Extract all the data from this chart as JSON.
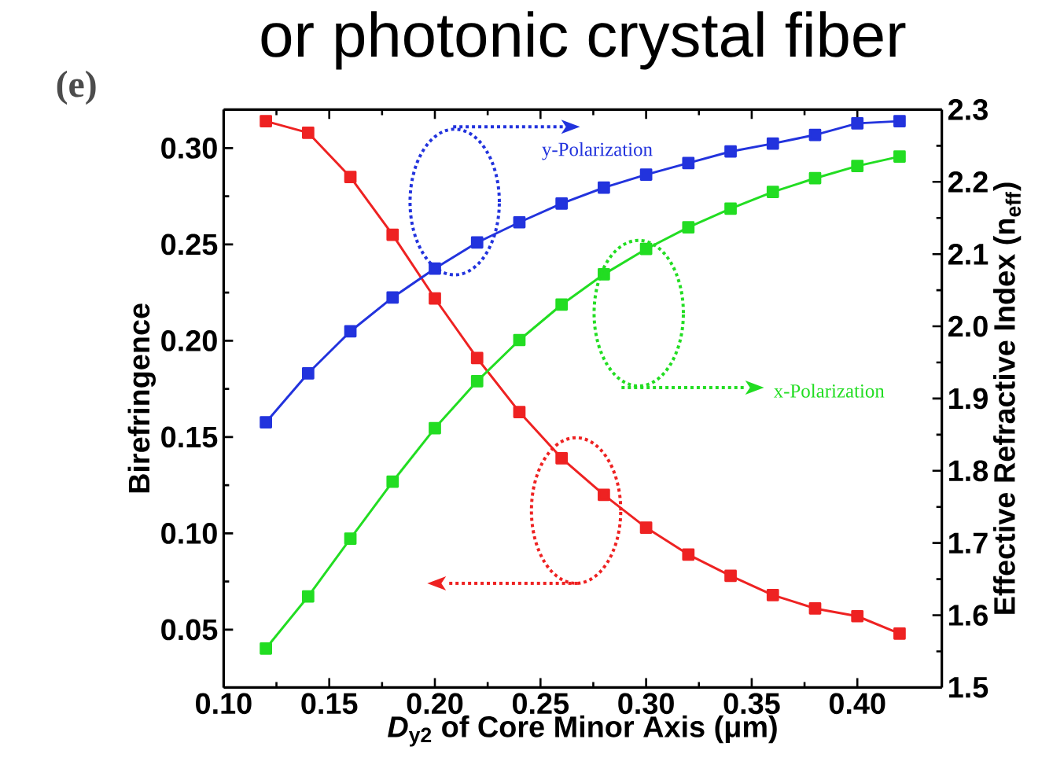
{
  "chart_data": {
    "type": "line",
    "title": "or photonic crystal fiber",
    "xlabel": "*D*$_{y2}$ of Core Minor Axis (μm)",
    "ylabel": "Birefringence",
    "y2label": "Effective Refractive Index (n$_{eff}$)",
    "annotations": [
      "(e)"
    ],
    "x": [
      0.12,
      0.14,
      0.16,
      0.18,
      0.2,
      0.22,
      0.24,
      0.26,
      0.28,
      0.3,
      0.32,
      0.34,
      0.36,
      0.38,
      0.4,
      0.42
    ],
    "series": [
      {
        "color": "#ee2222",
        "values": [
          0.314,
          0.308,
          0.285,
          0.255,
          0.222,
          0.191,
          0.163,
          0.139,
          0.12,
          0.103,
          0.089,
          0.078,
          0.068,
          0.061,
          0.057,
          0.048
        ]
      },
      {
        "name": "y-Polarization",
        "color": "#2233dd",
        "axis": "y2",
        "values": [
          1.867,
          1.935,
          1.993,
          2.04,
          2.08,
          2.116,
          2.144,
          2.17,
          2.192,
          2.21,
          2.226,
          2.242,
          2.253,
          2.265,
          2.281,
          2.284
        ]
      },
      {
        "name": "x-Polarization",
        "color": "#22dd22",
        "axis": "y2",
        "values": [
          1.554,
          1.626,
          1.706,
          1.785,
          1.859,
          1.924,
          1.981,
          2.03,
          2.072,
          2.107,
          2.137,
          2.163,
          2.186,
          2.205,
          2.222,
          2.235
        ]
      }
    ],
    "xlim": [
      0.1,
      0.44
    ],
    "xticks": [
      {
        "value": 0.1,
        "label": "0.10"
      },
      0.15,
      {
        "value": 0.2,
        "label": "0.20"
      },
      0.25,
      {
        "value": 0.3,
        "label": "0.30"
      },
      0.35,
      {
        "value": 0.4,
        "label": "0.40"
      }
    ],
    "ylim": [
      0.02,
      0.32
    ],
    "yticks": [
      0.05,
      {
        "value": 0.1,
        "label": "0.10"
      },
      0.15,
      {
        "value": 0.2,
        "label": "0.20"
      },
      0.25,
      {
        "value": 0.3,
        "label": "0.30"
      }
    ],
    "y2lim": [
      1.5,
      2.3
    ],
    "y2ticks": [
      1.5,
      1.6,
      1.7,
      1.8,
      1.9,
      {
        "value": 2.0,
        "label": "2.0"
      },
      2.1,
      2.2,
      2.3
    ],
    "marker": "square"
  }
}
